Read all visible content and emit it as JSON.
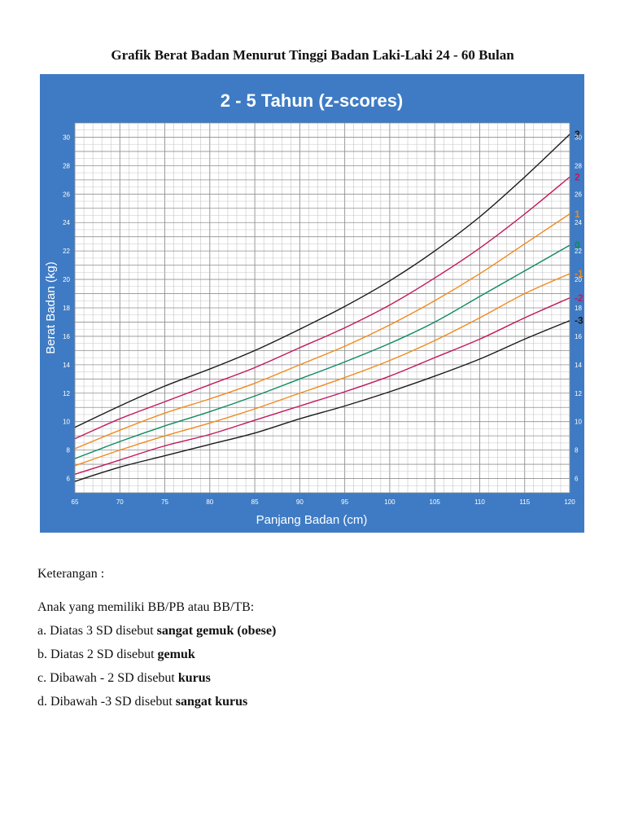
{
  "document": {
    "title": "Grafik Berat Badan Menurut Tinggi Badan Laki-Laki 24 - 60 Bulan"
  },
  "notes": {
    "heading": "Keterangan :",
    "intro": "Anak yang memiliki BB/PB atau BB/TB:",
    "items": [
      {
        "prefix": "a. Diatas 3 SD disebut ",
        "bold": "sangat gemuk",
        "suffix": " (obese)"
      },
      {
        "prefix": "b. Diatas 2 SD disebut ",
        "bold": "gemuk",
        "suffix": ""
      },
      {
        "prefix": "c. Dibawah - 2 SD disebut ",
        "bold": "kurus",
        "suffix": ""
      },
      {
        "prefix": "d. Dibawah -3 SD disebut ",
        "bold": "sangat kurus",
        "suffix": ""
      }
    ]
  },
  "colors": {
    "panel_background": "#3e7bc4",
    "plot_background": "#ffffff",
    "grid": "#b9b9b9",
    "grid_major": "#8f8f8f"
  },
  "chart_data": {
    "type": "line",
    "title": "2 - 5 Tahun (z-scores)",
    "xlabel": "Panjang Badan (cm)",
    "ylabel": "Berat Badan (kg)",
    "xlim": [
      65,
      120
    ],
    "ylim": [
      5,
      31
    ],
    "x_ticks": [
      "65",
      "70",
      "75",
      "80",
      "85",
      "90",
      "95",
      "100",
      "105",
      "110",
      "115",
      "120"
    ],
    "y_ticks": [
      "6",
      "8",
      "10",
      "12",
      "14",
      "16",
      "18",
      "20",
      "22",
      "24",
      "26",
      "28",
      "30"
    ],
    "grid": true,
    "x": [
      65,
      70,
      75,
      80,
      85,
      90,
      95,
      100,
      105,
      110,
      115,
      120
    ],
    "series": [
      {
        "name": "3",
        "color": "#1a1a1a",
        "values": [
          9.6,
          11.1,
          12.5,
          13.7,
          15.0,
          16.5,
          18.1,
          19.9,
          22.0,
          24.4,
          27.2,
          30.2
        ]
      },
      {
        "name": "2",
        "color": "#c2185b",
        "values": [
          8.8,
          10.2,
          11.4,
          12.6,
          13.8,
          15.2,
          16.6,
          18.2,
          20.1,
          22.2,
          24.6,
          27.2
        ]
      },
      {
        "name": "1",
        "color": "#f08a1c",
        "values": [
          8.1,
          9.4,
          10.6,
          11.6,
          12.7,
          14.0,
          15.3,
          16.8,
          18.5,
          20.4,
          22.5,
          24.6
        ]
      },
      {
        "name": "0",
        "color": "#0d8a5f",
        "values": [
          7.4,
          8.6,
          9.7,
          10.7,
          11.8,
          13.0,
          14.2,
          15.5,
          17.0,
          18.8,
          20.6,
          22.4
        ]
      },
      {
        "name": "-1",
        "color": "#f08a1c",
        "values": [
          6.9,
          8.0,
          9.0,
          9.9,
          10.9,
          12.0,
          13.1,
          14.3,
          15.7,
          17.3,
          19.0,
          20.4
        ]
      },
      {
        "name": "-2",
        "color": "#c2185b",
        "values": [
          6.3,
          7.3,
          8.3,
          9.1,
          10.1,
          11.1,
          12.1,
          13.2,
          14.5,
          15.8,
          17.3,
          18.7
        ]
      },
      {
        "name": "-3",
        "color": "#1a1a1a",
        "values": [
          5.8,
          6.8,
          7.6,
          8.4,
          9.2,
          10.2,
          11.1,
          12.1,
          13.2,
          14.4,
          15.8,
          17.1
        ]
      }
    ]
  }
}
